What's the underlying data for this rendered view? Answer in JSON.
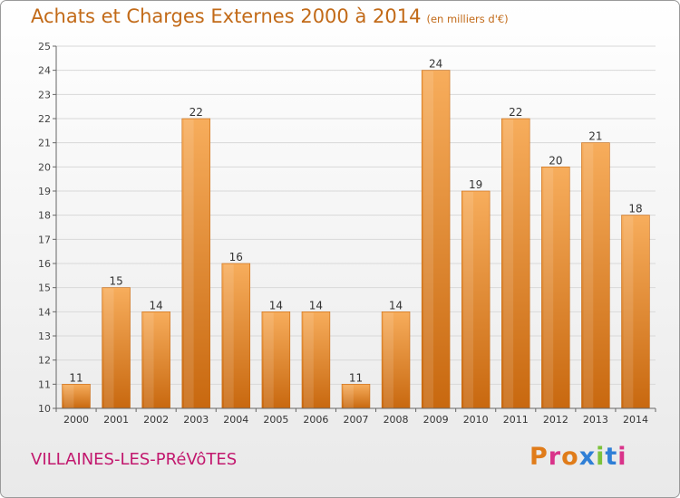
{
  "header": {
    "title": "Achats et Charges Externes 2000 à 2014",
    "unit": "(en milliers d'€)"
  },
  "footer": {
    "commune": "VILLAINES-LES-PRéVôTES",
    "logo_text": "Proxiti",
    "logo_colors": [
      "#e07c1a",
      "#d9338a",
      "#e07c1a",
      "#2f7fd6",
      "#7cc23a",
      "#2f7fd6",
      "#d9338a"
    ]
  },
  "chart_data": {
    "type": "bar",
    "title": "Achats et Charges Externes 2000 à 2014",
    "subtitle": "(en milliers d'€)",
    "xlabel": "",
    "ylabel": "",
    "categories": [
      "2000",
      "2001",
      "2002",
      "2003",
      "2004",
      "2005",
      "2006",
      "2007",
      "2008",
      "2009",
      "2010",
      "2011",
      "2012",
      "2013",
      "2014"
    ],
    "values": [
      11,
      15,
      14,
      22,
      16,
      14,
      14,
      11,
      14,
      24,
      19,
      22,
      20,
      21,
      18
    ],
    "ylim": [
      10,
      25
    ],
    "yticks": [
      10,
      11,
      12,
      13,
      14,
      15,
      16,
      17,
      18,
      19,
      20,
      21,
      22,
      23,
      24,
      25
    ],
    "grid": true,
    "bar_color": "#f0902f",
    "bar_color_light": "#f7ad5c",
    "bar_color_dark": "#c8680f"
  }
}
